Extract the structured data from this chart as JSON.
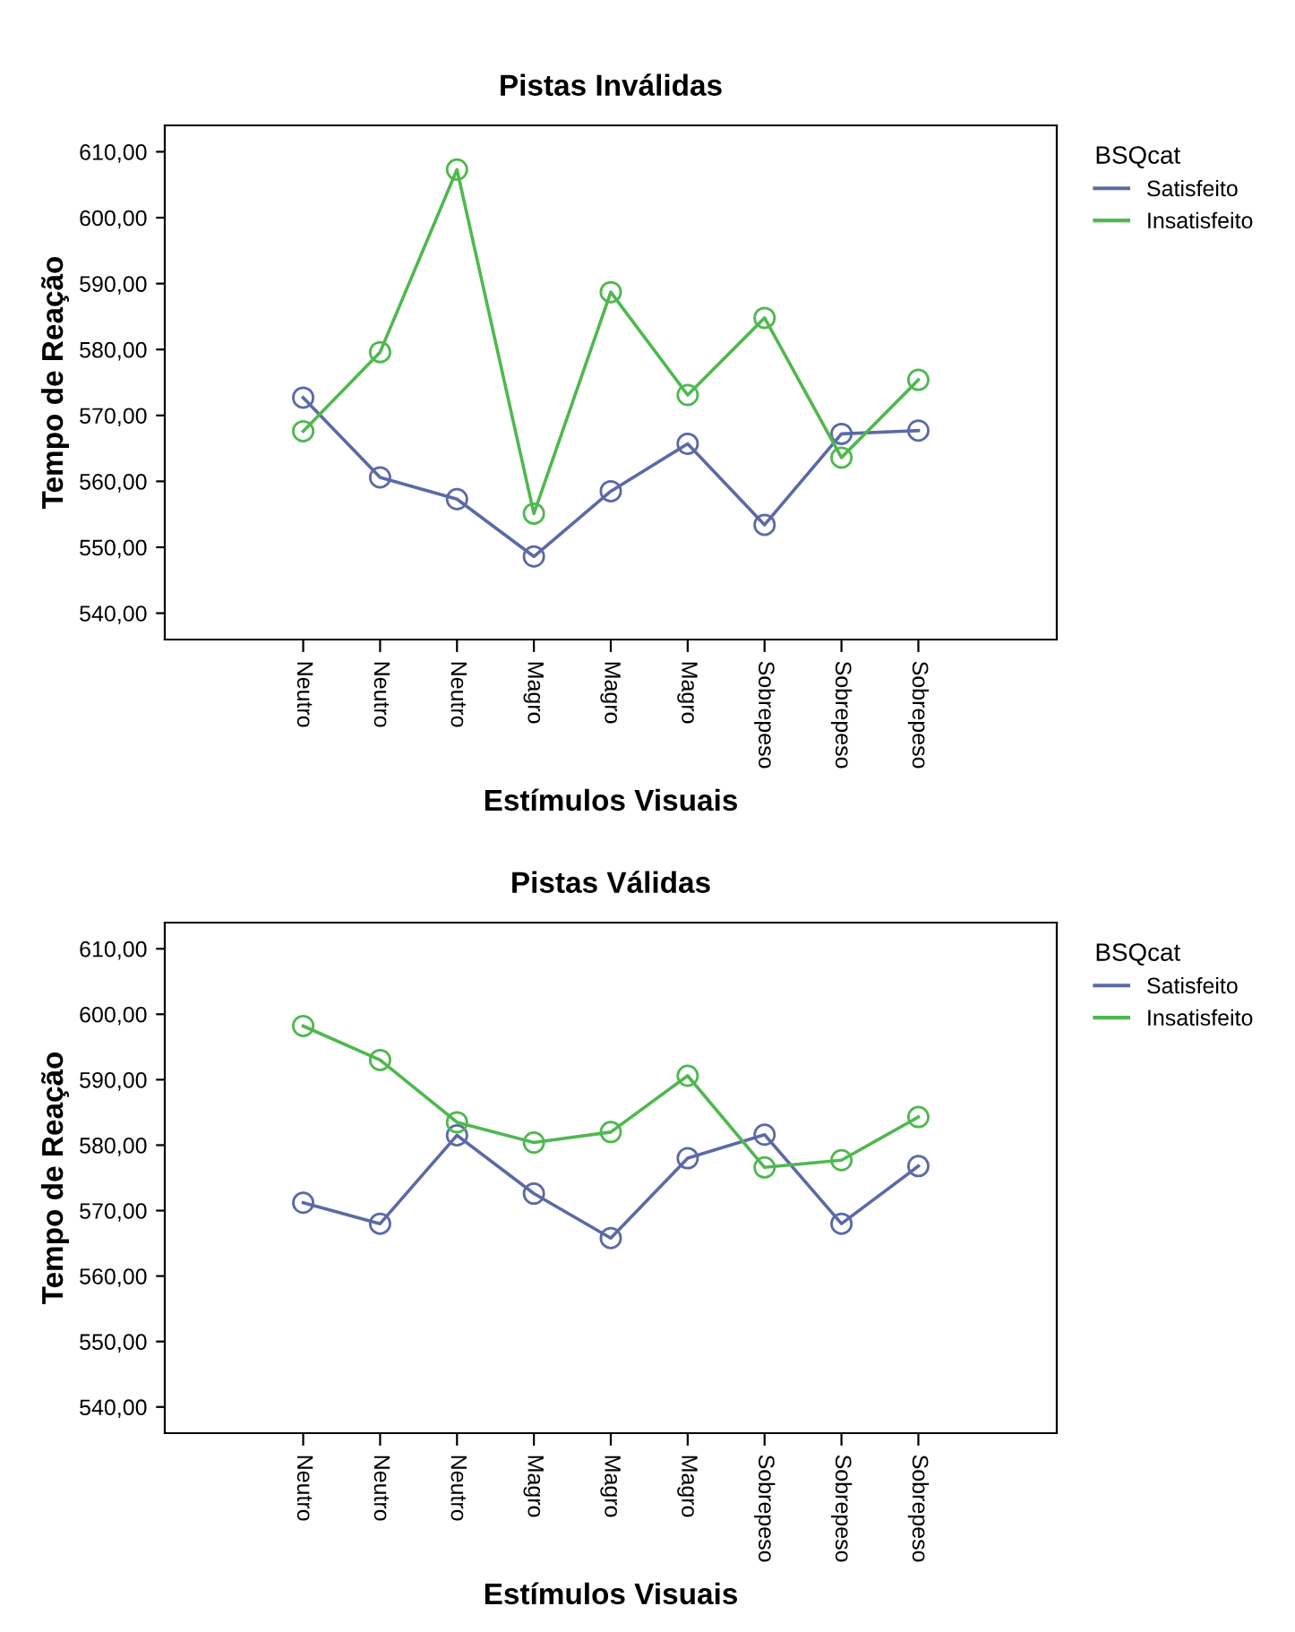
{
  "chart_data": [
    {
      "type": "line",
      "title": "Pistas Inválidas",
      "xlabel": "Estímulos Visuais",
      "ylabel": "Tempo de Reação",
      "legend_title": "BSQcat",
      "legend": "top right",
      "marker": "circle",
      "line_style": "solid",
      "grid": false,
      "categories": [
        "Neutro",
        "Neutro",
        "Neutro",
        "Magro",
        "Magro",
        "Magro",
        "Sobrepeso",
        "Sobrepeso",
        "Sobrepeso"
      ],
      "ylim": [
        536,
        614
      ],
      "yticks": [
        {
          "value": 540,
          "label": "540,00"
        },
        {
          "value": 550,
          "label": "550,00"
        },
        {
          "value": 560,
          "label": "560,00"
        },
        {
          "value": 570,
          "label": "570,00"
        },
        {
          "value": 580,
          "label": "580,00"
        },
        {
          "value": 590,
          "label": "590,00"
        },
        {
          "value": 600,
          "label": "600,00"
        },
        {
          "value": 610,
          "label": "610,00"
        }
      ],
      "series": [
        {
          "name": "Satisfeito",
          "color": "#5b6aa6",
          "values": [
            572.7,
            560.6,
            557.3,
            548.6,
            558.5,
            565.7,
            553.4,
            567.2,
            567.7
          ]
        },
        {
          "name": "Insatisfeito",
          "color": "#4fb84f",
          "values": [
            567.6,
            579.6,
            607.3,
            555.1,
            588.7,
            573.1,
            584.8,
            563.6,
            575.4
          ]
        }
      ]
    },
    {
      "type": "line",
      "title": "Pistas Válidas",
      "xlabel": "Estímulos Visuais",
      "ylabel": "Tempo de Reação",
      "legend_title": "BSQcat",
      "legend": "top right",
      "marker": "circle",
      "line_style": "solid",
      "grid": false,
      "categories": [
        "Neutro",
        "Neutro",
        "Neutro",
        "Magro",
        "Magro",
        "Magro",
        "Sobrepeso",
        "Sobrepeso",
        "Sobrepeso"
      ],
      "ylim": [
        536,
        614
      ],
      "yticks": [
        {
          "value": 540,
          "label": "540,00"
        },
        {
          "value": 550,
          "label": "550,00"
        },
        {
          "value": 560,
          "label": "560,00"
        },
        {
          "value": 570,
          "label": "570,00"
        },
        {
          "value": 580,
          "label": "580,00"
        },
        {
          "value": 590,
          "label": "590,00"
        },
        {
          "value": 600,
          "label": "600,00"
        },
        {
          "value": 610,
          "label": "610,00"
        }
      ],
      "series": [
        {
          "name": "Satisfeito",
          "color": "#5b6aa6",
          "values": [
            571.2,
            568.0,
            581.5,
            572.6,
            565.8,
            578.0,
            581.6,
            568.0,
            576.8
          ]
        },
        {
          "name": "Insatisfeito",
          "color": "#4fb84f",
          "values": [
            598.2,
            593.0,
            583.5,
            580.4,
            582.0,
            590.6,
            576.6,
            577.7,
            584.3
          ]
        }
      ]
    }
  ]
}
